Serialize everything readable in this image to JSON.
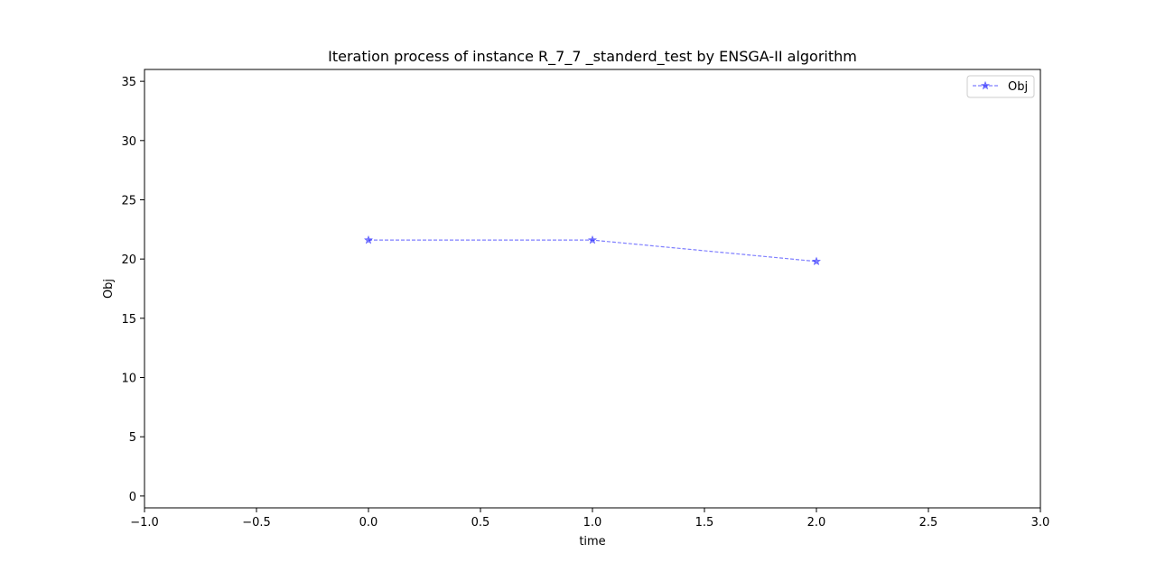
{
  "chart_data": {
    "type": "line",
    "title": "Iteration process of instance R_7_7 _standerd_test by ENSGA-II algorithm",
    "xlabel": "time",
    "ylabel": "Obj",
    "xlim": [
      -1.0,
      3.0
    ],
    "ylim": [
      -1.0,
      36.0
    ],
    "xticks": [
      -1.0,
      -0.5,
      0.0,
      0.5,
      1.0,
      1.5,
      2.0,
      2.5,
      3.0
    ],
    "xtick_labels": [
      "−1.0",
      "−0.5",
      "0.0",
      "0.5",
      "1.0",
      "1.5",
      "2.0",
      "2.5",
      "3.0"
    ],
    "yticks": [
      0,
      5,
      10,
      15,
      20,
      25,
      30,
      35
    ],
    "ytick_labels": [
      "0",
      "5",
      "10",
      "15",
      "20",
      "25",
      "30",
      "35"
    ],
    "grid": false,
    "legend_position": "top-right",
    "series": [
      {
        "name": "Obj",
        "x": [
          0,
          1,
          2
        ],
        "y": [
          21.6,
          21.6,
          19.8
        ],
        "color": "#0000ff",
        "line_style": "dashed",
        "marker": "star",
        "alpha": 0.5
      }
    ]
  }
}
